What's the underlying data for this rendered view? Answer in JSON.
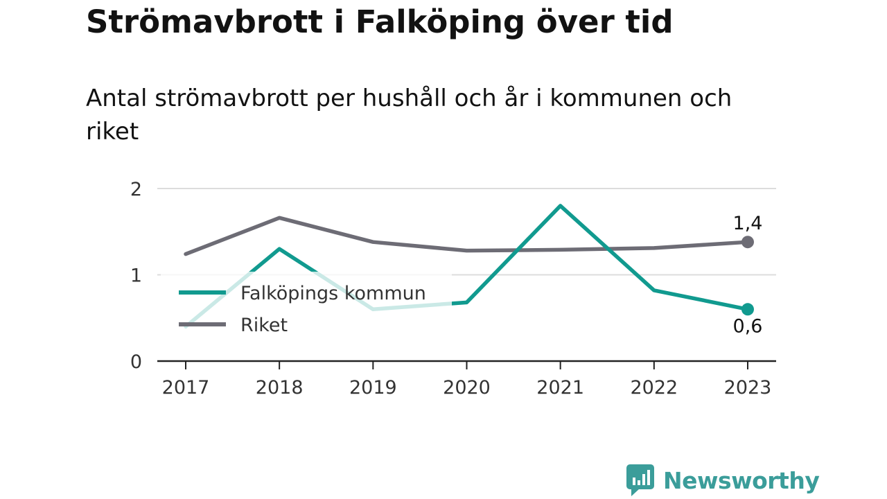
{
  "title": "Strömavbrott i Falköping över tid",
  "subtitle": "Antal strömavbrott per hushåll och år i kommunen och riket",
  "brand": {
    "name": "Newsworthy",
    "icon": "newsworthy-logo-icon",
    "color": "#3b9d9a"
  },
  "chart_data": {
    "type": "line",
    "title": "Strömavbrott i Falköping över tid",
    "subtitle": "Antal strömavbrott per hushåll och år i kommunen och riket",
    "xlabel": "",
    "ylabel": "",
    "x": [
      "2017",
      "2018",
      "2019",
      "2020",
      "2021",
      "2022",
      "2023"
    ],
    "ylim": [
      0,
      2
    ],
    "yticks": [
      "0",
      "1",
      "2"
    ],
    "grid": true,
    "legend_position": "left",
    "series": [
      {
        "name": "Falköpings kommun",
        "color": "#119a8f",
        "values": [
          0.4,
          1.3,
          0.6,
          0.68,
          1.8,
          0.82,
          0.6
        ],
        "end_label": "0,6"
      },
      {
        "name": "Riket",
        "color": "#6d6c75",
        "values": [
          1.24,
          1.66,
          1.38,
          1.28,
          1.29,
          1.31,
          1.38
        ],
        "end_label": "1,4"
      }
    ]
  }
}
